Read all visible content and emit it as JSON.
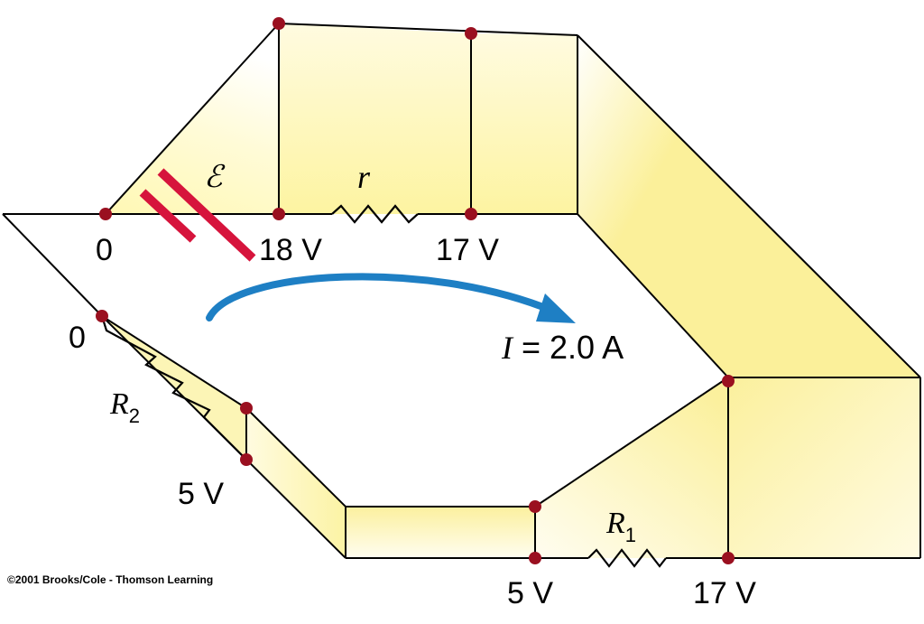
{
  "diagram": {
    "copyright": "©2001 Brooks/Cole - Thomson Learning",
    "current_label": {
      "symbol": "I",
      "rest": " = 2.0 A"
    },
    "emf_label": "ℰ",
    "internal_resistor_label": "r",
    "resistor1_label": {
      "base": "R",
      "sub": "1"
    },
    "resistor2_label": {
      "base": "R",
      "sub": "2"
    },
    "potentials": {
      "battery_low": "0",
      "battery_high": "18 V",
      "after_r": "17 V",
      "r2_top": "0",
      "r2_bottom": "5 V",
      "r1_left": "5 V",
      "r1_right": "17 V"
    },
    "colors": {
      "panel_fill": "#fcf5a6",
      "panel_fade": "#ffffff",
      "node": "#9a1020",
      "battery": "#d6143c",
      "current_arrow": "#1e7fc4",
      "wire": "#000000"
    }
  }
}
